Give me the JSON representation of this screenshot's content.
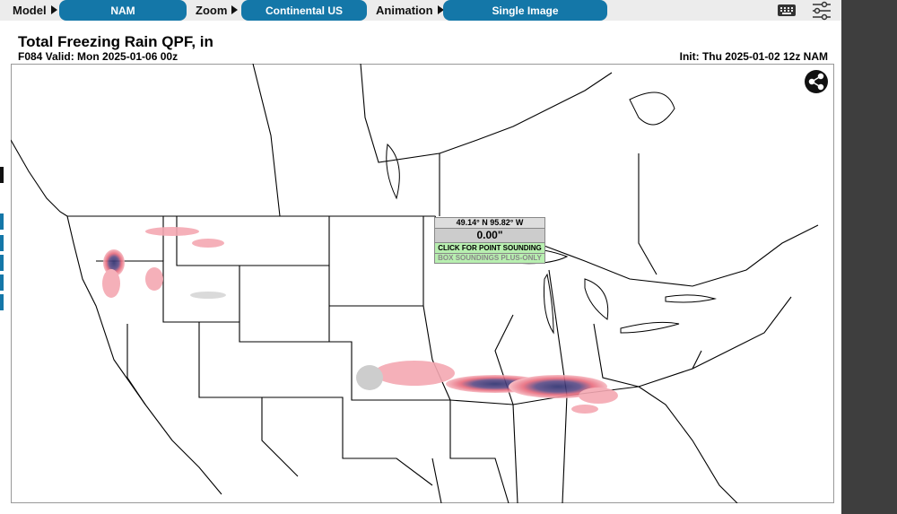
{
  "toolbar": {
    "model_label": "Model",
    "model_value": "NAM",
    "zoom_label": "Zoom",
    "zoom_value": "Continental US",
    "animation_label": "Animation",
    "animation_value": "Single Image"
  },
  "header": {
    "title": "Total Freezing Rain QPF, in",
    "valid": "F084 Valid: Mon 2025-01-06 00z",
    "init": "Init: Thu 2025-01-02 12z NAM"
  },
  "popup": {
    "coords": "49.14° N 95.82° W",
    "value": "0.00\"",
    "action": "CLICK FOR POINT SOUNDING",
    "note": "BOX SOUNDINGS PLUS-ONLY"
  }
}
